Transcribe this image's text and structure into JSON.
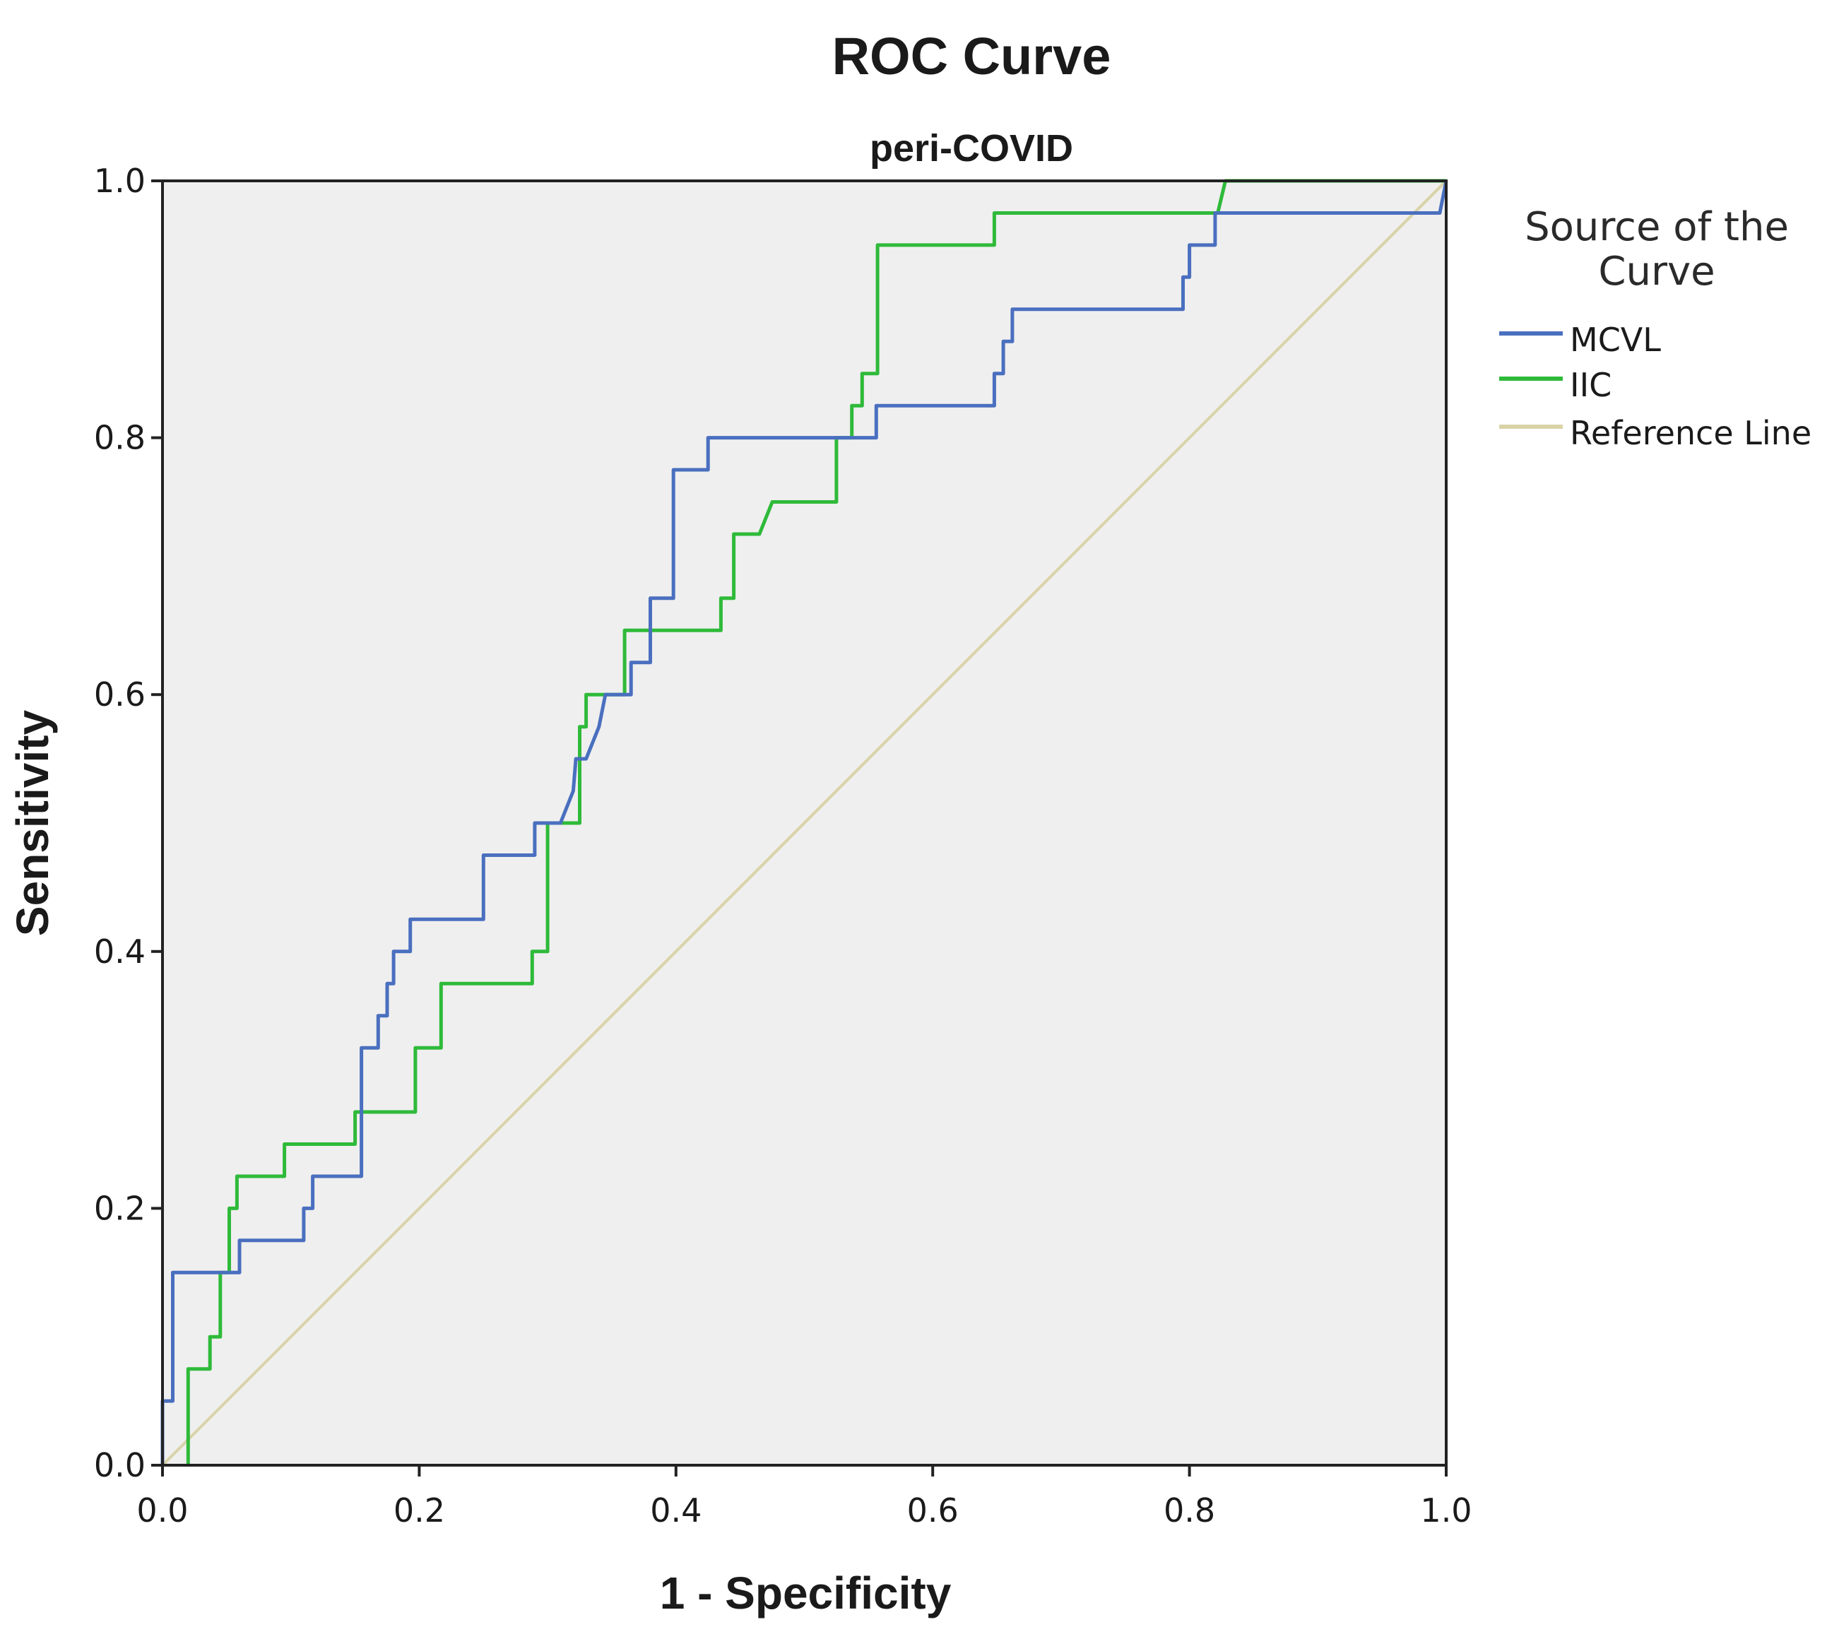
{
  "chart_data": {
    "type": "line",
    "title": "ROC Curve",
    "subtitle": "peri-COVID",
    "xlabel": "1 - Specificity",
    "ylabel": "Sensitivity",
    "xlim": [
      0,
      1
    ],
    "ylim": [
      0,
      1
    ],
    "x_ticks": [
      "0.0",
      "0.2",
      "0.4",
      "0.6",
      "0.8",
      "1.0"
    ],
    "y_ticks": [
      "0.0",
      "0.2",
      "0.4",
      "0.6",
      "0.8",
      "1.0"
    ],
    "legend_title": "Source of the Curve",
    "legend_position": "right",
    "series": [
      {
        "name": "MCVL",
        "color": "#4a6fbf",
        "x": [
          0,
          0,
          0.008,
          0.008,
          0.055,
          0.06,
          0.06,
          0.11,
          0.11,
          0.117,
          0.117,
          0.155,
          0.155,
          0.168,
          0.168,
          0.175,
          0.175,
          0.18,
          0.18,
          0.193,
          0.193,
          0.25,
          0.25,
          0.29,
          0.29,
          0.31,
          0.32,
          0.322,
          0.33,
          0.34,
          0.345,
          0.365,
          0.365,
          0.38,
          0.38,
          0.398,
          0.398,
          0.425,
          0.425,
          0.556,
          0.556,
          0.648,
          0.648,
          0.655,
          0.655,
          0.662,
          0.662,
          0.795,
          0.795,
          0.8,
          0.8,
          0.82,
          0.82,
          0.985,
          0.995,
          1.0
        ],
        "y": [
          0,
          0.05,
          0.05,
          0.15,
          0.15,
          0.15,
          0.175,
          0.175,
          0.2,
          0.2,
          0.225,
          0.225,
          0.325,
          0.325,
          0.35,
          0.35,
          0.375,
          0.375,
          0.4,
          0.4,
          0.425,
          0.425,
          0.475,
          0.475,
          0.5,
          0.5,
          0.525,
          0.55,
          0.55,
          0.575,
          0.6,
          0.6,
          0.625,
          0.625,
          0.675,
          0.675,
          0.775,
          0.775,
          0.8,
          0.8,
          0.825,
          0.825,
          0.85,
          0.85,
          0.875,
          0.875,
          0.9,
          0.9,
          0.925,
          0.925,
          0.95,
          0.95,
          0.975,
          0.975,
          0.975,
          1.0
        ]
      },
      {
        "name": "IIC",
        "color": "#2fba3a",
        "x": [
          0.02,
          0.02,
          0.037,
          0.037,
          0.045,
          0.045,
          0.052,
          0.052,
          0.058,
          0.058,
          0.072,
          0.072,
          0.095,
          0.095,
          0.15,
          0.15,
          0.197,
          0.197,
          0.217,
          0.217,
          0.288,
          0.288,
          0.3,
          0.3,
          0.325,
          0.325,
          0.33,
          0.33,
          0.338,
          0.338,
          0.36,
          0.36,
          0.375,
          0.375,
          0.435,
          0.435,
          0.445,
          0.445,
          0.465,
          0.475,
          0.525,
          0.525,
          0.537,
          0.537,
          0.545,
          0.545,
          0.557,
          0.557,
          0.648,
          0.648,
          0.822,
          0.828,
          1.0
        ],
        "y": [
          0,
          0.075,
          0.075,
          0.1,
          0.1,
          0.15,
          0.15,
          0.2,
          0.2,
          0.225,
          0.225,
          0.225,
          0.225,
          0.25,
          0.25,
          0.275,
          0.275,
          0.325,
          0.325,
          0.375,
          0.375,
          0.4,
          0.4,
          0.5,
          0.5,
          0.575,
          0.575,
          0.6,
          0.6,
          0.6,
          0.6,
          0.65,
          0.65,
          0.65,
          0.65,
          0.675,
          0.675,
          0.725,
          0.725,
          0.75,
          0.75,
          0.8,
          0.8,
          0.825,
          0.825,
          0.85,
          0.85,
          0.95,
          0.95,
          0.975,
          0.975,
          1.0,
          1.0
        ]
      },
      {
        "name": "Reference Line",
        "color": "#d9d3a8",
        "x": [
          0,
          1
        ],
        "y": [
          0,
          1
        ]
      }
    ]
  },
  "legend": {
    "title_line1": "Source of the",
    "title_line2": "Curve",
    "items": [
      "MCVL",
      "IIC",
      "Reference Line"
    ]
  },
  "colors": {
    "plot_background": "#efefef",
    "axis": "#222222"
  }
}
